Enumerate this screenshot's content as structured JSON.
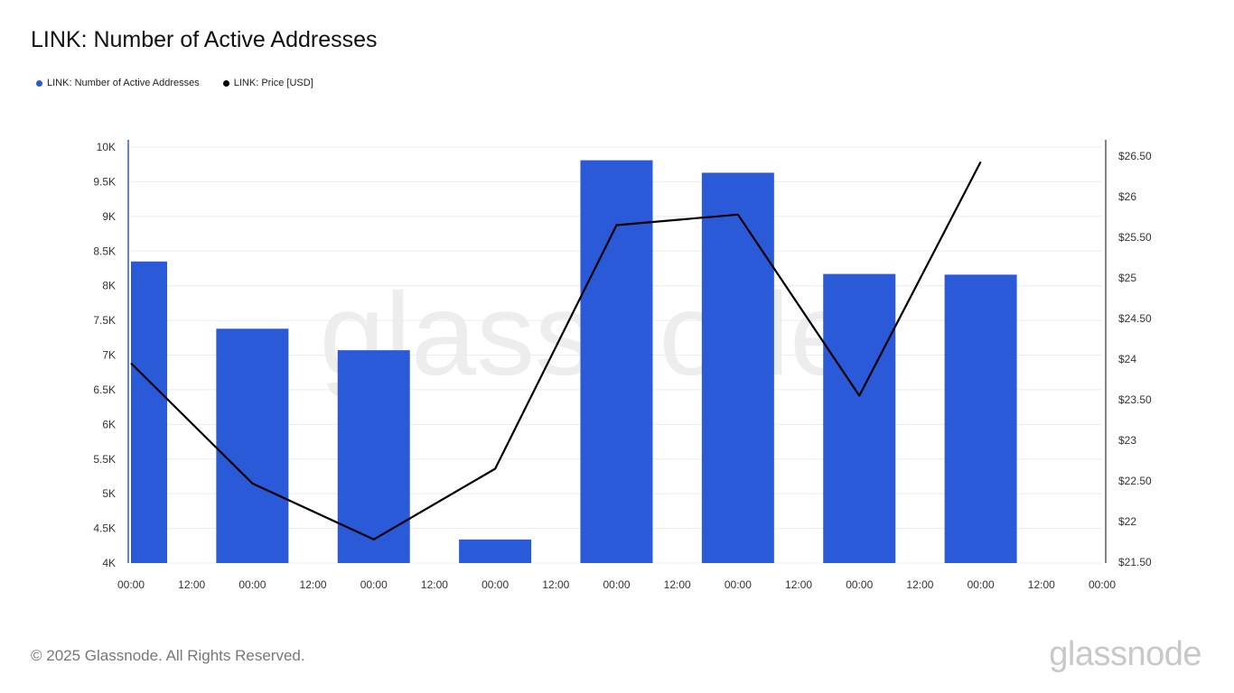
{
  "page": {
    "title": "LINK: Number of Active Addresses",
    "footer": "© 2025 Glassnode. All Rights Reserved.",
    "brand": "glassnode",
    "watermark": "glassnode"
  },
  "legend": [
    {
      "label": "LINK: Number of Active Addresses",
      "color": "#2b5ad9"
    },
    {
      "label": "LINK: Price [USD]",
      "color": "#000000"
    }
  ],
  "chart_data": {
    "type": "bar",
    "title": "LINK: Number of Active Addresses",
    "x_tick_labels": [
      "00:00",
      "12:00",
      "00:00",
      "12:00",
      "00:00",
      "12:00",
      "00:00",
      "12:00",
      "00:00",
      "12:00",
      "00:00",
      "12:00",
      "00:00",
      "12:00",
      "00:00",
      "12:00",
      "00:00"
    ],
    "left_axis": {
      "ylim": [
        4000,
        10000
      ],
      "ticks": [
        4000,
        4500,
        5000,
        5500,
        6000,
        6500,
        7000,
        7500,
        8000,
        8500,
        9000,
        9500,
        10000
      ],
      "tick_labels": [
        "4K",
        "4.5K",
        "5K",
        "5.5K",
        "6K",
        "6.5K",
        "7K",
        "7.5K",
        "8K",
        "8.5K",
        "9K",
        "9.5K",
        "10K"
      ]
    },
    "right_axis": {
      "ylim": [
        21.5,
        26.5
      ],
      "ticks": [
        21.5,
        22,
        22.5,
        23,
        23.5,
        24,
        24.5,
        25,
        25.5,
        26,
        26.5
      ],
      "tick_labels": [
        "$21.50",
        "$22",
        "$22.50",
        "$23",
        "$23.50",
        "$24",
        "$24.50",
        "$25",
        "$25.50",
        "$26",
        "$26.50"
      ]
    },
    "grid": true,
    "series": [
      {
        "name": "LINK: Number of Active Addresses",
        "type": "bar",
        "axis": "left",
        "color": "#2b5ad9",
        "x_index": [
          0,
          1,
          2,
          3,
          4,
          5,
          6,
          7
        ],
        "values": [
          8350,
          7380,
          7070,
          4340,
          9810,
          9630,
          8170,
          8160
        ]
      },
      {
        "name": "LINK: Price [USD]",
        "type": "line",
        "axis": "right",
        "color": "#000000",
        "x_index": [
          0,
          1,
          2,
          3,
          4,
          5,
          6,
          7
        ],
        "values": [
          23.95,
          22.47,
          21.78,
          22.65,
          25.65,
          25.78,
          23.55,
          26.43
        ]
      }
    ]
  }
}
